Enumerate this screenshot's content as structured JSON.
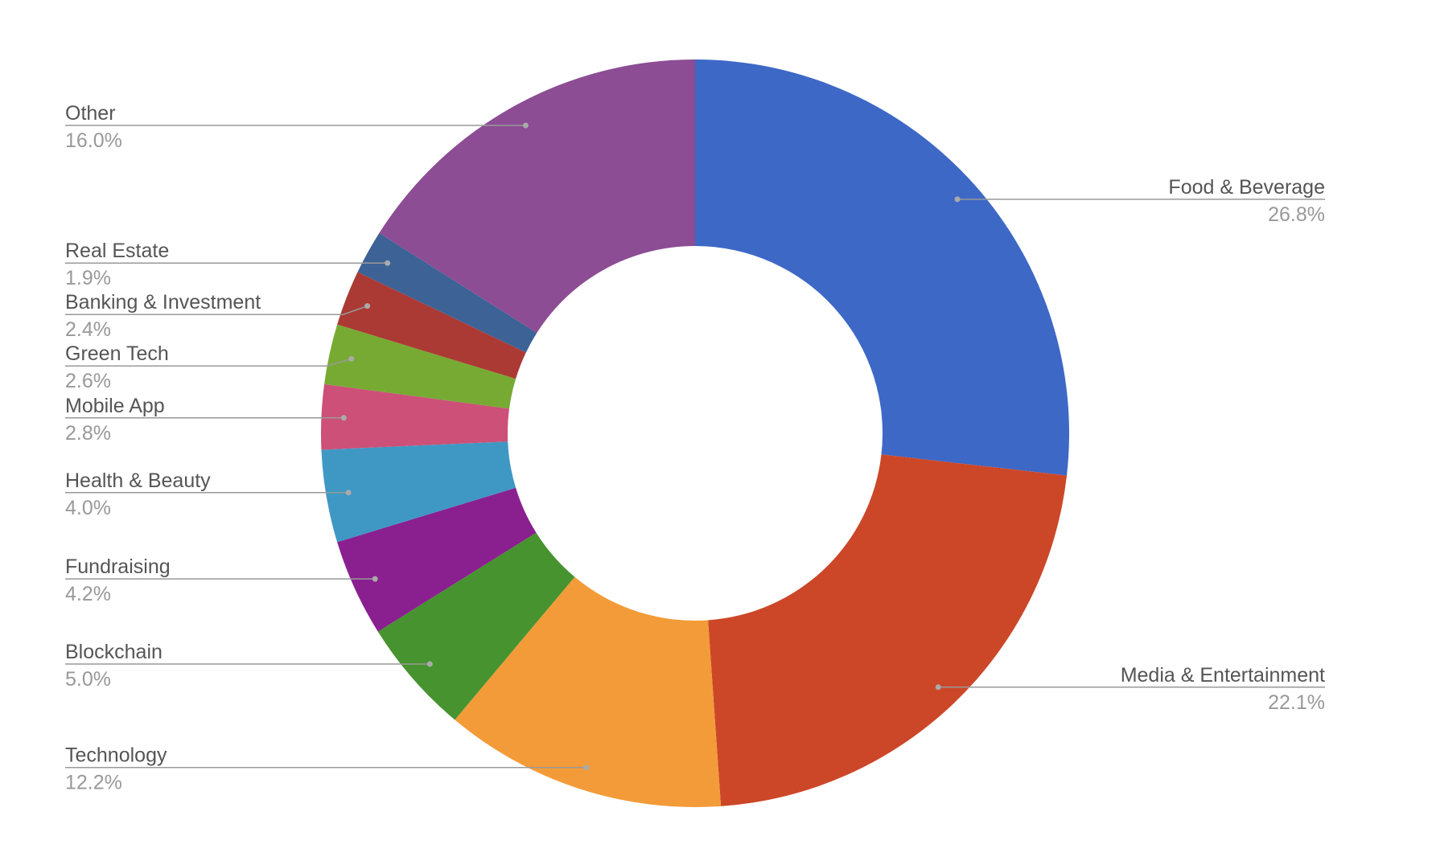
{
  "chart_data": {
    "type": "pie",
    "categories": [
      "Food & Beverage",
      "Media & Entertainment",
      "Technology",
      "Blockchain",
      "Fundraising",
      "Health & Beauty",
      "Mobile App",
      "Green Tech",
      "Banking & Investment",
      "Real Estate",
      "Other"
    ],
    "values": [
      26.8,
      22.1,
      12.2,
      5.0,
      4.2,
      4.0,
      2.8,
      2.6,
      2.4,
      1.9,
      16.0
    ],
    "value_labels": [
      "26.8%",
      "22.1%",
      "12.2%",
      "5.0%",
      "4.2%",
      "4.0%",
      "2.8%",
      "2.6%",
      "2.4%",
      "1.9%",
      "16.0%"
    ],
    "colors": [
      "#3d68c6",
      "#cc4628",
      "#f29b38",
      "#46932f",
      "#8a1f90",
      "#3f97c4",
      "#cc5077",
      "#77aa33",
      "#aa3a33",
      "#3d6296",
      "#8c4d94"
    ],
    "donut": true
  }
}
